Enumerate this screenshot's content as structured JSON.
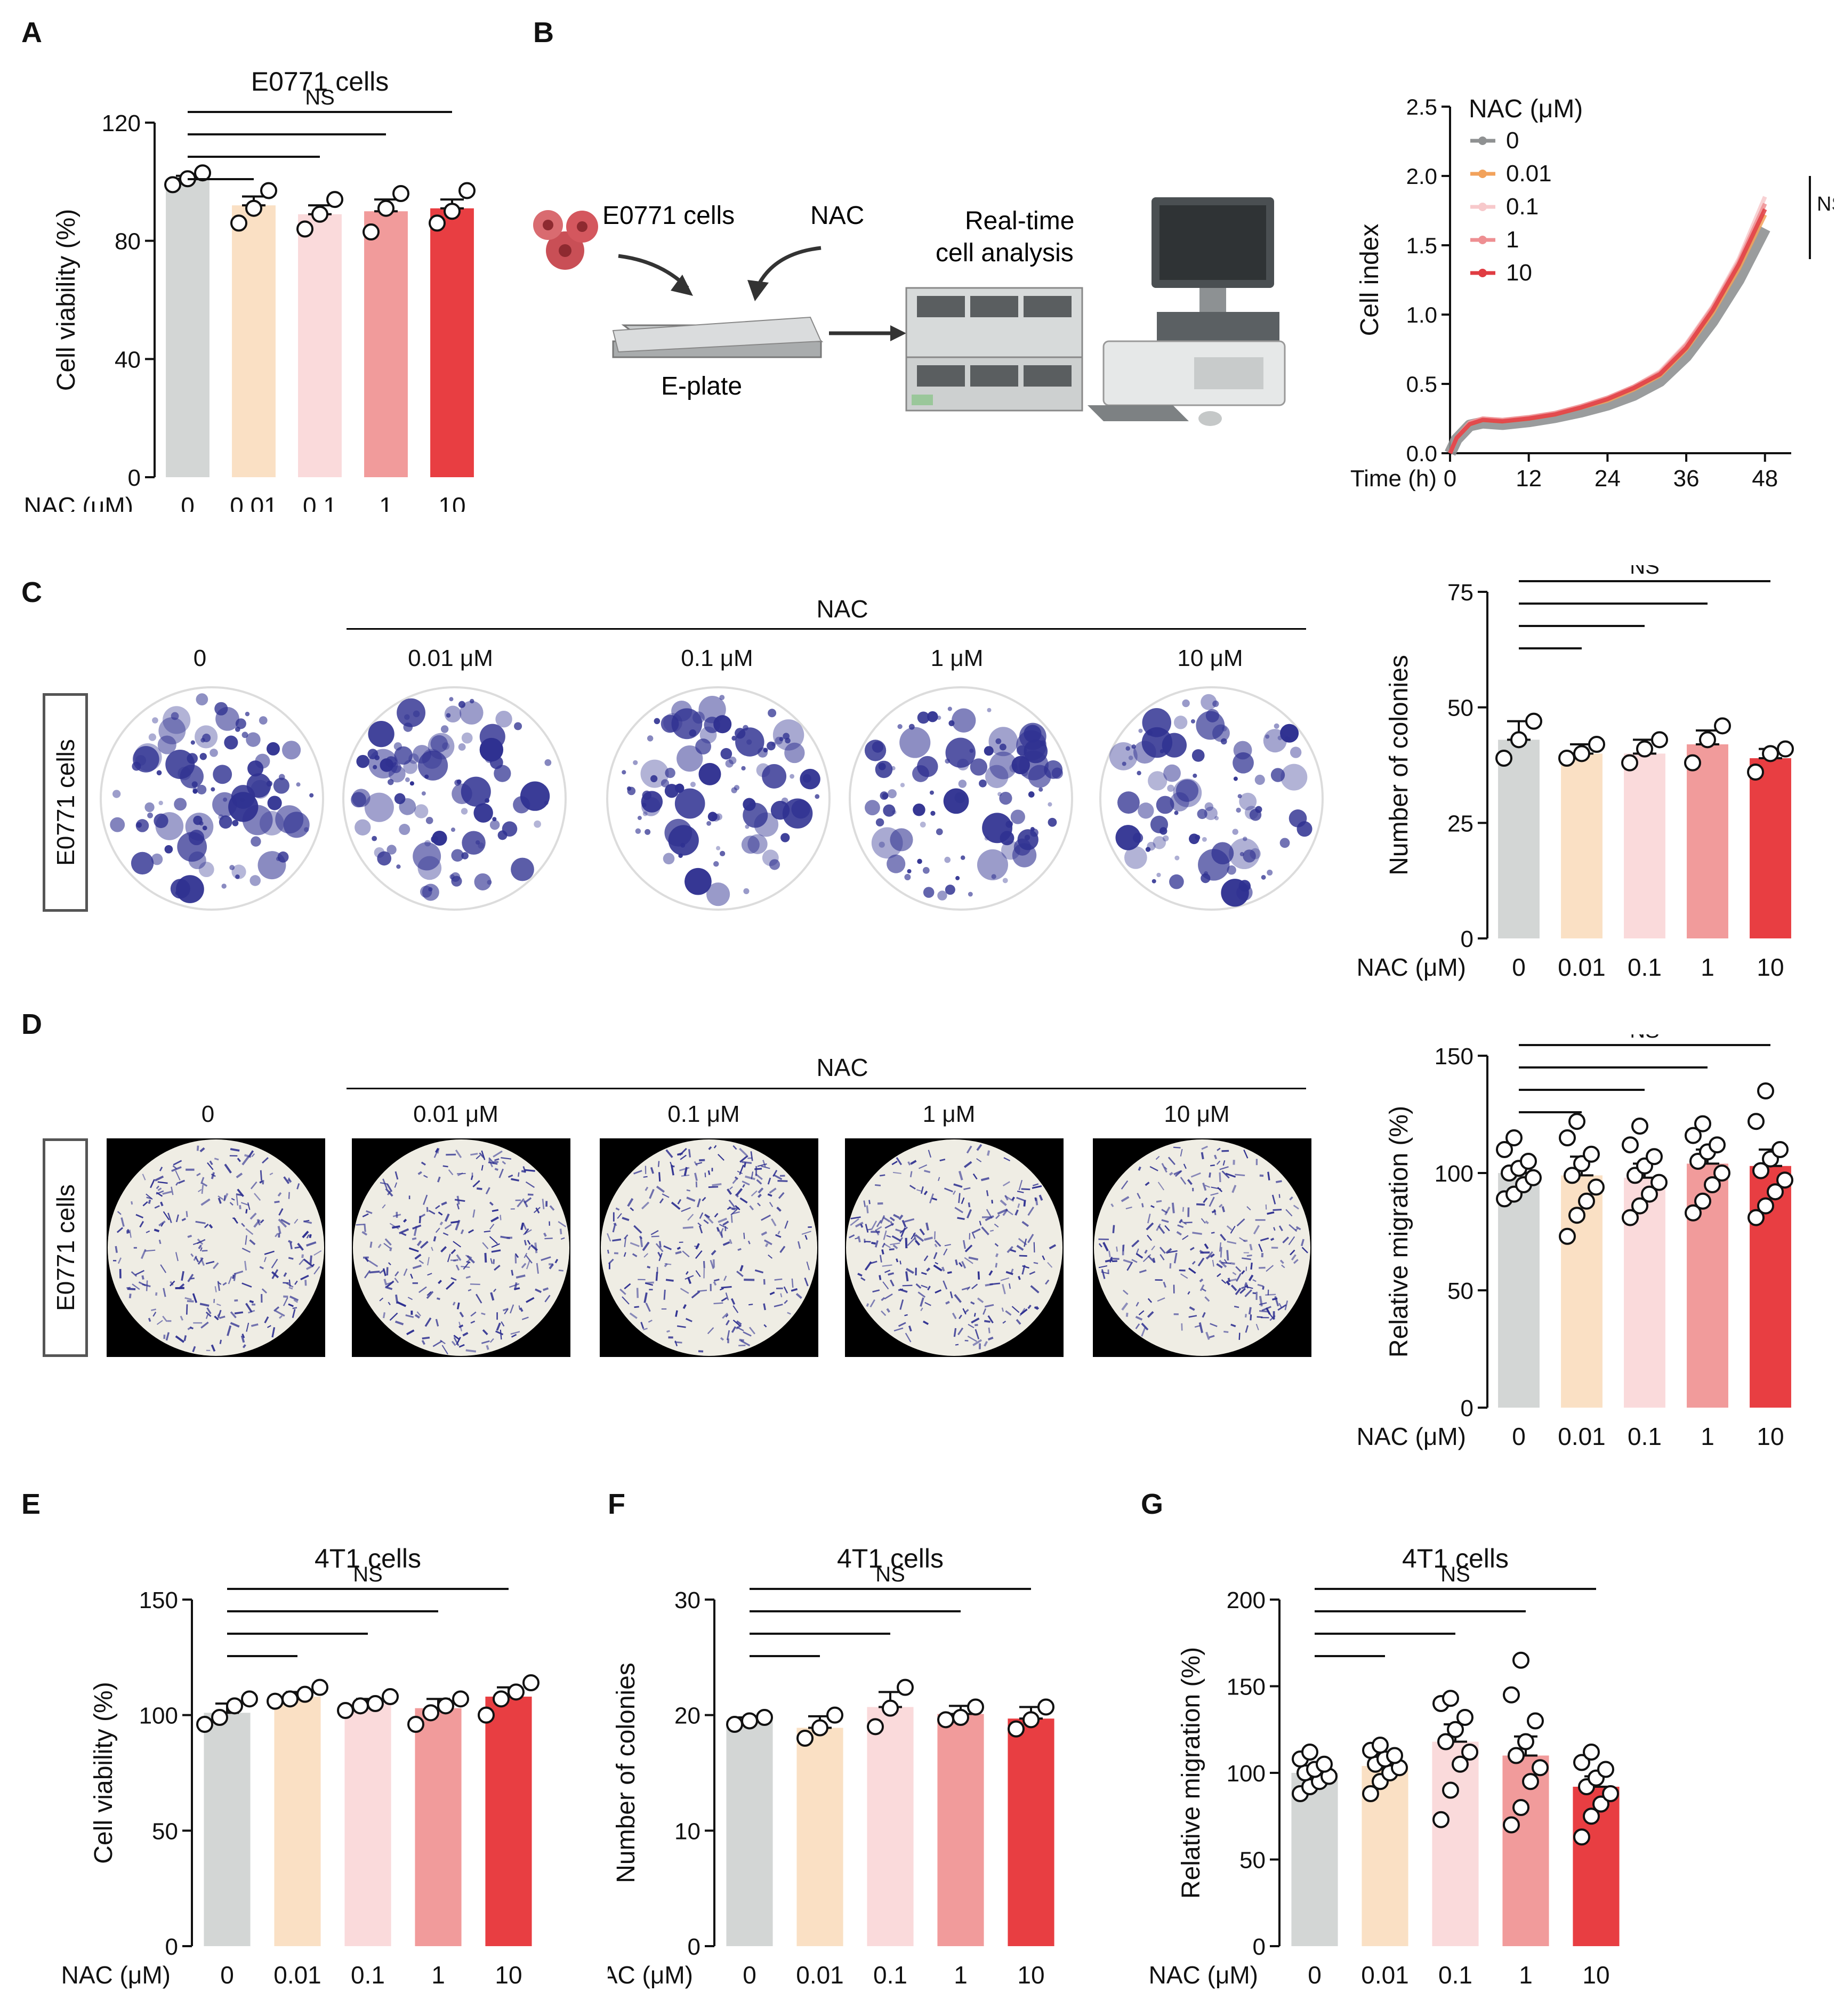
{
  "panels": {
    "A": "A",
    "B": "B",
    "C": "C",
    "D": "D",
    "E": "E",
    "F": "F",
    "G": "G"
  },
  "colors": {
    "c0": "#d3d6d5",
    "c001": "#fae0c4",
    "c01": "#fadadb",
    "c1": "#f19b9b",
    "c10": "#e83e42",
    "crystal_violet": "#2f3191"
  },
  "schematic": {
    "cells_label": "E0771 cells",
    "nac_label": "NAC",
    "plate_label": "E-plate",
    "rtca_label_line1": "Real-time",
    "rtca_label_line2": "cell analysis"
  },
  "images_C": {
    "side_label": "E0771 cells",
    "header": "NAC",
    "doses": [
      "0",
      "0.01 μM",
      "0.1 μM",
      "1 μM",
      "10 μM"
    ]
  },
  "images_D": {
    "side_label": "E0771 cells",
    "header": "NAC",
    "doses": [
      "0",
      "0.01 μM",
      "0.1 μM",
      "1 μM",
      "10 μM"
    ]
  },
  "chart_data": [
    {
      "id": "A",
      "type": "bar",
      "title": "E0771 cells",
      "xlabel": "NAC (μM)",
      "ylabel": "Cell viability (%)",
      "categories": [
        "0",
        "0.01",
        "0.1",
        "1",
        "10"
      ],
      "values": [
        101,
        92,
        89,
        90,
        91
      ],
      "sem": [
        1,
        3,
        3,
        4,
        3
      ],
      "points": [
        [
          99,
          101,
          103
        ],
        [
          86,
          91,
          97
        ],
        [
          84,
          89,
          94
        ],
        [
          83,
          91,
          96
        ],
        [
          86,
          90,
          97
        ]
      ],
      "ylim": [
        0,
        120
      ],
      "yticks": [
        0,
        40,
        80,
        120
      ],
      "significance": "NS"
    },
    {
      "id": "B",
      "type": "line",
      "title": "",
      "xlabel": "Time (h)",
      "ylabel": "Cell index",
      "legend_title": "NAC (μM)",
      "x": [
        0,
        1,
        3,
        5,
        8,
        12,
        16,
        20,
        24,
        28,
        32,
        36,
        40,
        44,
        48
      ],
      "series": [
        {
          "name": "0",
          "values": [
            0,
            0.1,
            0.2,
            0.22,
            0.21,
            0.23,
            0.26,
            0.3,
            0.35,
            0.42,
            0.52,
            0.7,
            0.95,
            1.25,
            1.62
          ]
        },
        {
          "name": "0.01",
          "values": [
            0,
            0.11,
            0.21,
            0.24,
            0.23,
            0.25,
            0.28,
            0.33,
            0.38,
            0.46,
            0.56,
            0.75,
            1.01,
            1.33,
            1.72
          ]
        },
        {
          "name": "0.1",
          "values": [
            0,
            0.11,
            0.22,
            0.25,
            0.24,
            0.26,
            0.29,
            0.34,
            0.4,
            0.48,
            0.59,
            0.79,
            1.06,
            1.4,
            1.85
          ]
        },
        {
          "name": "1",
          "values": [
            0,
            0.11,
            0.22,
            0.25,
            0.24,
            0.26,
            0.29,
            0.34,
            0.4,
            0.48,
            0.58,
            0.78,
            1.05,
            1.38,
            1.8
          ]
        },
        {
          "name": "10",
          "values": [
            0,
            0.11,
            0.21,
            0.24,
            0.23,
            0.25,
            0.28,
            0.33,
            0.39,
            0.47,
            0.57,
            0.76,
            1.03,
            1.36,
            1.76
          ]
        }
      ],
      "xlim": [
        0,
        52
      ],
      "xticks": [
        0,
        12,
        24,
        36,
        48
      ],
      "ylim": [
        0,
        2.5
      ],
      "yticks": [
        0.0,
        0.5,
        1.0,
        1.5,
        2.0,
        2.5
      ],
      "significance": "NS"
    },
    {
      "id": "C",
      "type": "bar",
      "title": "",
      "xlabel": "NAC (μM)",
      "ylabel": "Number of colonies",
      "categories": [
        "0",
        "0.01",
        "0.1",
        "1",
        "10"
      ],
      "values": [
        43,
        40,
        40,
        42,
        39
      ],
      "sem": [
        4,
        2,
        3,
        3,
        2
      ],
      "points": [
        [
          39,
          43,
          47
        ],
        [
          39,
          40,
          42
        ],
        [
          38,
          41,
          43
        ],
        [
          38,
          43,
          46
        ],
        [
          36,
          40,
          41
        ]
      ],
      "ylim": [
        0,
        75
      ],
      "yticks": [
        0,
        25,
        50,
        75
      ],
      "significance": "NS"
    },
    {
      "id": "D",
      "type": "bar",
      "title": "",
      "xlabel": "NAC (μM)",
      "ylabel": "Relative migration (%)",
      "categories": [
        "0",
        "0.01",
        "0.1",
        "1",
        "10"
      ],
      "values": [
        100,
        99,
        98,
        104,
        103
      ],
      "sem": [
        3,
        8,
        6,
        6,
        7
      ],
      "points": [
        [
          89,
          91,
          95,
          98,
          100,
          102,
          105,
          110,
          115
        ],
        [
          73,
          82,
          88,
          94,
          99,
          104,
          108,
          115,
          122
        ],
        [
          81,
          86,
          91,
          96,
          99,
          103,
          107,
          112,
          120
        ],
        [
          83,
          88,
          95,
          100,
          105,
          109,
          112,
          116,
          121
        ],
        [
          81,
          86,
          92,
          97,
          101,
          106,
          110,
          122,
          135
        ]
      ],
      "ylim": [
        0,
        150
      ],
      "yticks": [
        0,
        50,
        100,
        150
      ],
      "significance": "NS"
    },
    {
      "id": "E",
      "type": "bar",
      "title": "4T1 cells",
      "xlabel": "NAC (μM)",
      "ylabel": "Cell viability (%)",
      "categories": [
        "0",
        "0.01",
        "0.1",
        "1",
        "10"
      ],
      "values": [
        101,
        108,
        105,
        103,
        108
      ],
      "sem": [
        4,
        2,
        2,
        4,
        4
      ],
      "points": [
        [
          96,
          99,
          104,
          107
        ],
        [
          106,
          107,
          109,
          112
        ],
        [
          102,
          104,
          105,
          108
        ],
        [
          96,
          101,
          104,
          107
        ],
        [
          100,
          107,
          110,
          114
        ]
      ],
      "ylim": [
        0,
        150
      ],
      "yticks": [
        0,
        50,
        100,
        150
      ],
      "significance": "NS"
    },
    {
      "id": "F",
      "type": "bar",
      "title": "4T1 cells",
      "xlabel": "NAC (μM)",
      "ylabel": "Number of colonies",
      "categories": [
        "0",
        "0.01",
        "0.1",
        "1",
        "10"
      ],
      "values": [
        19.5,
        18.9,
        20.7,
        20.1,
        19.7
      ],
      "sem": [
        0.3,
        1.0,
        1.3,
        0.7,
        1.0
      ],
      "points": [
        [
          19.2,
          19.5,
          19.8
        ],
        [
          18.0,
          18.9,
          20.0
        ],
        [
          19.0,
          20.6,
          22.4
        ],
        [
          19.6,
          19.8,
          20.7
        ],
        [
          18.8,
          19.6,
          20.7
        ]
      ],
      "ylim": [
        0,
        30
      ],
      "yticks": [
        0,
        10,
        20,
        30
      ],
      "significance": "NS"
    },
    {
      "id": "G",
      "type": "bar",
      "title": "4T1 cells",
      "xlabel": "NAC (μM)",
      "ylabel": "Relative migration (%)",
      "categories": [
        "0",
        "0.01",
        "0.1",
        "1",
        "10"
      ],
      "values": [
        100,
        104,
        118,
        110,
        92
      ],
      "sem": [
        3,
        5,
        10,
        11,
        6
      ],
      "points": [
        [
          88,
          92,
          95,
          98,
          100,
          102,
          105,
          108,
          112
        ],
        [
          88,
          95,
          100,
          103,
          105,
          108,
          110,
          113,
          116
        ],
        [
          73,
          90,
          105,
          112,
          118,
          125,
          132,
          140,
          143
        ],
        [
          70,
          80,
          95,
          103,
          110,
          118,
          130,
          145,
          165
        ],
        [
          63,
          75,
          82,
          88,
          92,
          97,
          102,
          106,
          112
        ]
      ],
      "ylim": [
        0,
        200
      ],
      "yticks": [
        0,
        50,
        100,
        150,
        200
      ],
      "significance": "NS"
    }
  ]
}
